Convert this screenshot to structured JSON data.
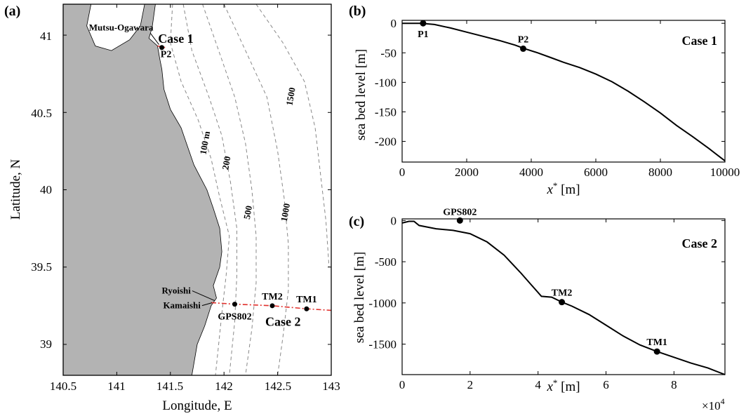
{
  "chart_data": [
    {
      "panel": "(a)",
      "type": "map",
      "xlabel": "Longitude, E",
      "ylabel": "Latitude, N",
      "xlim": [
        140.5,
        143
      ],
      "ylim": [
        38.8,
        41.2
      ],
      "xticks": [
        "140.5",
        "141",
        "141.5",
        "142",
        "142.5",
        "143"
      ],
      "yticks": [
        "39",
        "39.5",
        "40",
        "40.5",
        "41"
      ],
      "land_color": "#b3b3b3",
      "transect_color": "#e0302c",
      "places": [
        {
          "name": "Mutsu-Ogawara",
          "lon": 141.38,
          "lat": 40.93
        },
        {
          "name": "Ryoishi",
          "lon": 141.9,
          "lat": 39.31
        },
        {
          "name": "Kamaishi",
          "lon": 141.9,
          "lat": 39.26
        }
      ],
      "points": [
        {
          "name": "P2",
          "lon": 141.42,
          "lat": 40.92
        },
        {
          "name": "GPS802",
          "lon": 142.1,
          "lat": 39.26
        },
        {
          "name": "TM2",
          "lon": 142.45,
          "lat": 39.25
        },
        {
          "name": "TM1",
          "lon": 142.77,
          "lat": 39.23
        }
      ],
      "cases": [
        {
          "name": "Case 1",
          "lon": 141.55,
          "lat": 40.95
        },
        {
          "name": "Case 2",
          "lon": 142.55,
          "lat": 39.12
        }
      ],
      "contour_labels": [
        {
          "text": "100 m",
          "lon": 141.85,
          "lat": 40.3
        },
        {
          "text": "200",
          "lon": 142.05,
          "lat": 40.17
        },
        {
          "text": "500",
          "lon": 142.25,
          "lat": 39.85
        },
        {
          "text": "1000",
          "lon": 142.6,
          "lat": 39.85
        },
        {
          "text": "1500",
          "lon": 142.65,
          "lat": 40.6
        }
      ]
    },
    {
      "panel": "(b)",
      "type": "line",
      "title": "Case 1",
      "xlabel_prefix": "x",
      "xlabel_sup": "*",
      "xlabel_unit": " [m]",
      "ylabel": "sea bed level [m]",
      "xlim": [
        0,
        10000
      ],
      "ylim": [
        -235,
        5
      ],
      "xticks": [
        0,
        2000,
        4000,
        6000,
        8000,
        10000
      ],
      "yticks": [
        0,
        -50,
        -100,
        -150,
        -200
      ],
      "series": [
        {
          "x": [
            0,
            300,
            600,
            1000,
            1500,
            2000,
            2500,
            3000,
            3500,
            3800,
            4200,
            4600,
            5000,
            5500,
            6000,
            6500,
            7000,
            7500,
            8000,
            8500,
            9000,
            9500,
            10000
          ],
          "y": [
            0,
            0,
            0,
            -2,
            -8,
            -15,
            -22,
            -29,
            -37,
            -43,
            -50,
            -58,
            -66,
            -75,
            -86,
            -99,
            -115,
            -133,
            -152,
            -173,
            -192,
            -212,
            -233
          ]
        }
      ],
      "markers": [
        {
          "name": "P1",
          "x": 650,
          "y": 0
        },
        {
          "name": "P2",
          "x": 3750,
          "y": -43
        }
      ]
    },
    {
      "panel": "(c)",
      "type": "line",
      "title": "Case 2",
      "xlabel_prefix": "x",
      "xlabel_sup": "*",
      "xlabel_unit": " [m]",
      "x_multiplier": "×10",
      "x_multiplier_exp": "4",
      "ylabel": "sea bed level [m]",
      "xlim": [
        0,
        9.5
      ],
      "ylim": [
        -1870,
        20
      ],
      "xticks": [
        0,
        2,
        4,
        6,
        8
      ],
      "yticks": [
        0,
        -500,
        -1000,
        -1500
      ],
      "series": [
        {
          "x": [
            0,
            0.2,
            0.35,
            0.5,
            1.0,
            1.5,
            2.0,
            2.5,
            3.0,
            3.5,
            3.8,
            4.1,
            4.4,
            4.7,
            5.0,
            5.5,
            6.0,
            6.5,
            7.0,
            7.5,
            8.0,
            8.5,
            9.0,
            9.5
          ],
          "y": [
            -30,
            -10,
            -10,
            -60,
            -100,
            -120,
            -160,
            -260,
            -420,
            -640,
            -780,
            -920,
            -930,
            -990,
            -1040,
            -1140,
            -1270,
            -1400,
            -1510,
            -1590,
            -1660,
            -1730,
            -1790,
            -1870
          ]
        }
      ],
      "markers": [
        {
          "name": "GPS802",
          "x": 1.7,
          "y": 0
        },
        {
          "name": "TM2",
          "x": 4.7,
          "y": -990
        },
        {
          "name": "TM1",
          "x": 7.5,
          "y": -1590
        }
      ]
    }
  ]
}
